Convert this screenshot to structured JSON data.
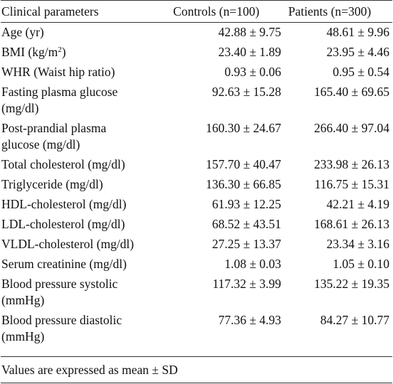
{
  "headers": {
    "parameter": "Clinical parameters",
    "controls": "Controls (n=100)",
    "patients": "Patients (n=300)"
  },
  "rows": [
    {
      "label": "Age (yr)",
      "controls": "42.88 ± 9.75",
      "patients": "48.61 ± 9.96"
    },
    {
      "label_prefix": "BMI (kg/m",
      "label_sup": "2",
      "label_suffix": ")",
      "controls": "23.40 ± 1.89",
      "patients": "23.95 ± 4.46"
    },
    {
      "label": "WHR (Waist hip ratio)",
      "controls": "0.93 ± 0.06",
      "patients": "0.95 ± 0.54"
    },
    {
      "label_line1": "Fasting plasma glucose",
      "label_line2": "(mg/dl)",
      "controls": "92.63 ± 15.28",
      "patients": "165.40 ± 69.65"
    },
    {
      "label_line1": "Post-prandial plasma",
      "label_line2": "glucose (mg/dl)",
      "controls": "160.30 ± 24.67",
      "patients": "266.40 ± 97.04"
    },
    {
      "label": "Total cholesterol (mg/dl)",
      "controls": "157.70 ± 40.47",
      "patients": "233.98 ± 26.13"
    },
    {
      "label": "Triglyceride (mg/dl)",
      "controls": "136.30 ± 66.85",
      "patients": "116.75 ± 15.31"
    },
    {
      "label": "HDL-cholesterol (mg/dl)",
      "controls": "61.93 ± 12.25",
      "patients": "42.21 ± 4.19"
    },
    {
      "label": "LDL-cholesterol (mg/dl)",
      "controls": "68.52 ± 43.51",
      "patients": "168.61 ± 26.13"
    },
    {
      "label": "VLDL-cholesterol (mg/dl)",
      "controls": "27.25 ± 13.37",
      "patients": "23.34 ± 3.16"
    },
    {
      "label": "Serum creatinine (mg/dl)",
      "controls": "1.08 ± 0.03",
      "patients": "1.05 ± 0.10"
    },
    {
      "label_line1": "Blood pressure systolic",
      "label_line2": "(mmHg)",
      "controls": "117.32 ± 3.99",
      "patients": "135.22 ± 19.35"
    },
    {
      "label_line1": "Blood pressure diastolic",
      "label_line2": "(mmHg)",
      "controls": "77.36 ± 4.93",
      "patients": "84.27 ± 10.77"
    }
  ],
  "footnote": "Values are expressed as mean ± SD"
}
